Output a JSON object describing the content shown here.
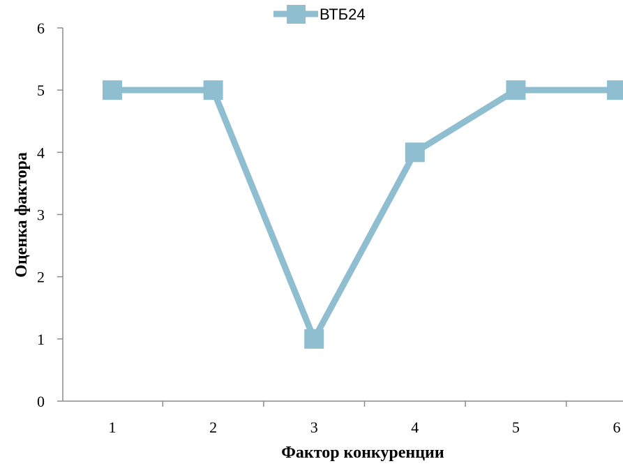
{
  "chart_data": {
    "type": "line",
    "title": "",
    "categories": [
      "1",
      "2",
      "3",
      "4",
      "5",
      "6"
    ],
    "x": [
      1,
      2,
      3,
      4,
      5,
      6
    ],
    "series": [
      {
        "name": "ВТБ24",
        "values": [
          5,
          5,
          1,
          4,
          5,
          5
        ],
        "color": "#8fbed0",
        "marker": "square"
      }
    ],
    "xlabel": "Фактор конкуренции",
    "ylabel": "Оценка фактора",
    "ylim": [
      0,
      6
    ],
    "yticks": [
      "0",
      "1",
      "2",
      "3",
      "4",
      "5",
      "6"
    ],
    "grid": false,
    "legend_position": "top"
  }
}
